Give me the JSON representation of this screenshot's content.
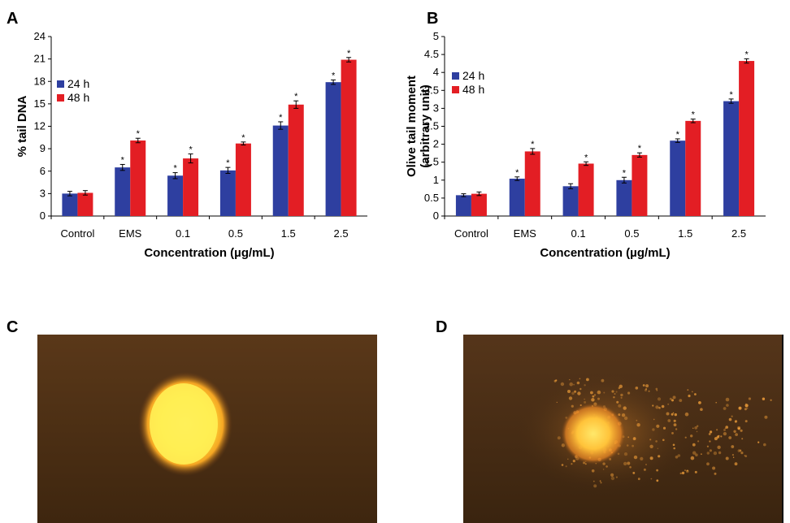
{
  "panels": {
    "a": "A",
    "b": "B",
    "c": "C",
    "d": "D"
  },
  "chart_data": [
    {
      "type": "bar",
      "categories": [
        "Control",
        "EMS",
        "0.1",
        "0.5",
        "1.5",
        "2.5"
      ],
      "series": [
        {
          "name": "24 h",
          "color": "#2E3FA0",
          "values": [
            3.0,
            6.5,
            5.4,
            6.1,
            12.1,
            17.9
          ],
          "errors": [
            0.3,
            0.4,
            0.4,
            0.4,
            0.5,
            0.3
          ],
          "significant": [
            false,
            true,
            true,
            true,
            true,
            true
          ]
        },
        {
          "name": "48 h",
          "color": "#E31E24",
          "values": [
            3.1,
            10.1,
            7.7,
            9.7,
            14.9,
            20.9
          ],
          "errors": [
            0.3,
            0.3,
            0.6,
            0.2,
            0.5,
            0.3
          ],
          "significant": [
            false,
            true,
            true,
            true,
            true,
            true
          ]
        }
      ],
      "xlabel": "Concentration (µg/mL)",
      "ylabel": "% tail DNA",
      "ylim": [
        0,
        24
      ],
      "yticks": [
        "0",
        "3",
        "6",
        "9",
        "12",
        "15",
        "18",
        "21",
        "24"
      ],
      "significance_marker": "*",
      "legend": "left",
      "grid": false
    },
    {
      "type": "bar",
      "categories": [
        "Control",
        "EMS",
        "0.1",
        "0.5",
        "1.5",
        "2.5"
      ],
      "series": [
        {
          "name": "24 h",
          "color": "#2E3FA0",
          "values": [
            0.58,
            1.04,
            0.83,
            1.0,
            2.1,
            3.2
          ],
          "errors": [
            0.04,
            0.05,
            0.07,
            0.08,
            0.05,
            0.06
          ],
          "significant": [
            false,
            true,
            false,
            true,
            true,
            true
          ]
        },
        {
          "name": "48 h",
          "color": "#E31E24",
          "values": [
            0.62,
            1.8,
            1.46,
            1.7,
            2.65,
            4.32
          ],
          "errors": [
            0.05,
            0.08,
            0.05,
            0.06,
            0.05,
            0.06
          ],
          "significant": [
            false,
            true,
            true,
            true,
            true,
            true
          ]
        }
      ],
      "xlabel": "Concentration (µg/mL)",
      "ylabel": [
        "Olive tail moment",
        "(arbitrary unit)"
      ],
      "ylim": [
        0,
        5
      ],
      "yticks": [
        "0",
        "0.5",
        "1",
        "1.5",
        "2",
        "2.5",
        "3",
        "3.5",
        "4",
        "4.5",
        "5"
      ],
      "significance_marker": "*",
      "legend": "left",
      "grid": false
    }
  ],
  "photos": {
    "background_color": "#4A2E15",
    "c_comet_color": "#FFE23A",
    "d_comet_color": "#FFB43A"
  }
}
